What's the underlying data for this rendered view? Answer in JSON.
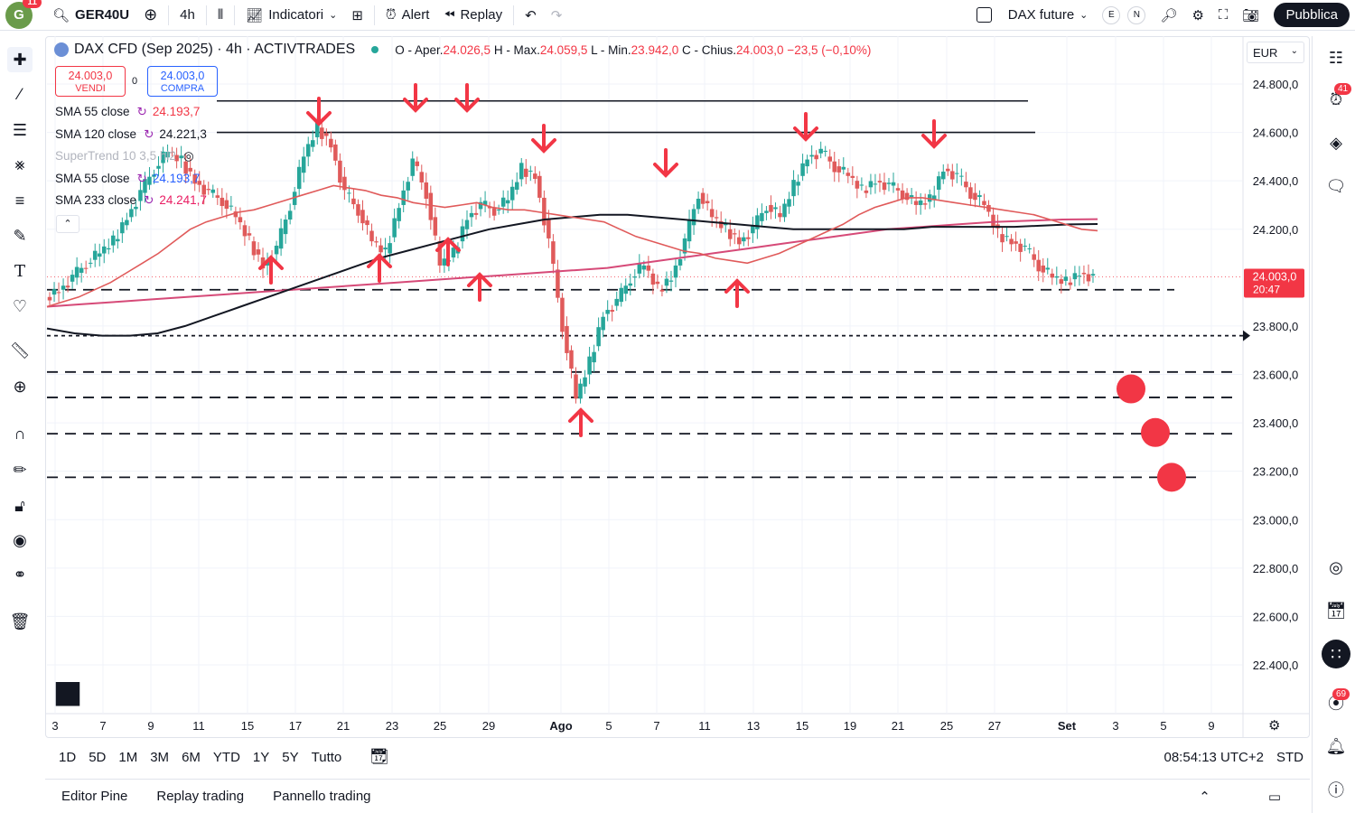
{
  "topbar": {
    "avatar_letter": "G",
    "avatar_badge": "11",
    "symbol": "GER40U",
    "interval": "4h",
    "indicators_label": "Indicatori",
    "alert_label": "Alert",
    "replay_label": "Replay",
    "layout_name": "DAX future",
    "circle_e": "E",
    "circle_n": "N",
    "publish_label": "Pubblica"
  },
  "legend": {
    "title": "DAX CFD (Sep 2025) · 4h · ACTIVTRADES",
    "o_label": "O - Aper.",
    "o_value": "24.026,5",
    "h_label": "H - Max.",
    "h_value": "24.059,5",
    "l_label": "L - Min.",
    "l_value": "23.942,0",
    "c_label": "C - Chius.",
    "c_value": "24.003,0",
    "change": "−23,5 (−0,10%)"
  },
  "trade": {
    "sell_price": "24.003,0",
    "sell_label": "VENDI",
    "spread": "0",
    "buy_price": "24.003,0",
    "buy_label": "COMPRA"
  },
  "indicators": [
    {
      "name": "SMA 55 close",
      "value": "24.193,7",
      "color": "#f23645"
    },
    {
      "name": "SMA 120 close",
      "value": "24.221,3",
      "color": "#131722"
    },
    {
      "name": "SuperTrend 10 3,5 hl2",
      "value": "",
      "color": "#b2b5be"
    },
    {
      "name": "SMA 55 close",
      "value": "24.193,7",
      "color": "#2962ff"
    },
    {
      "name": "SMA 233 close",
      "value": "24.241,7",
      "color": "#e91e63"
    }
  ],
  "currency": "EUR",
  "price_axis": {
    "ticks": [
      "24.800,0",
      "24.600,0",
      "24.400,0",
      "24.200,0",
      "23.800,0",
      "23.600,0",
      "23.400,0",
      "23.200,0",
      "23.000,0",
      "22.800,0",
      "22.600,0",
      "22.400,0"
    ],
    "current_price": "24.003,0",
    "countdown": "20:47"
  },
  "time_axis": [
    "3",
    "7",
    "9",
    "11",
    "15",
    "17",
    "21",
    "23",
    "25",
    "29",
    "Ago",
    "5",
    "7",
    "11",
    "13",
    "15",
    "19",
    "21",
    "25",
    "27",
    "Set",
    "3",
    "5",
    "9"
  ],
  "ranges": [
    "1D",
    "5D",
    "1M",
    "3M",
    "6M",
    "YTD",
    "1Y",
    "5Y",
    "Tutto"
  ],
  "clock": "08:54:13 UTC+2",
  "session": "STD",
  "panels": [
    "Editor Pine",
    "Replay trading",
    "Pannello trading"
  ],
  "right_badges": {
    "alerts": "41",
    "notifications": "69"
  },
  "colors": {
    "up": "#26a69a",
    "down": "#e05a5a",
    "arrow": "#f23645",
    "sma55": "#e05a5a",
    "sma120": "#131722",
    "sma233": "#d64a78"
  },
  "chart_data": {
    "type": "candlestick",
    "ylim": [
      22300,
      24900
    ],
    "close_series": [
      23950,
      24000,
      24060,
      24100,
      24150,
      24250,
      24350,
      24450,
      24520,
      24480,
      24400,
      24350,
      24320,
      24250,
      24150,
      24050,
      24120,
      24300,
      24500,
      24620,
      24550,
      24350,
      24280,
      24150,
      24100,
      24300,
      24480,
      24350,
      24050,
      24100,
      24250,
      24300,
      24280,
      24320,
      24450,
      24420,
      24150,
      23800,
      23500,
      23650,
      23850,
      23900,
      24000,
      24050,
      23950,
      24000,
      24150,
      24350,
      24250,
      24200,
      24150,
      24200,
      24300,
      24250,
      24380,
      24500,
      24520,
      24460,
      24420,
      24360,
      24400,
      24380,
      24350,
      24300,
      24320,
      24450,
      24420,
      24350,
      24300,
      24180,
      24150,
      24120,
      24050,
      24000,
      23980,
      24020,
      24003
    ],
    "sma55": [
      23880,
      23900,
      23920,
      23950,
      23980,
      24020,
      24060,
      24100,
      24150,
      24200,
      24230,
      24250,
      24270,
      24280,
      24300,
      24320,
      24340,
      24360,
      24380,
      24370,
      24360,
      24340,
      24330,
      24310,
      24300,
      24290,
      24300,
      24310,
      24290,
      24280,
      24280,
      24270,
      24260,
      24250,
      24240,
      24230,
      24200,
      24170,
      24150,
      24130,
      24110,
      24100,
      24080,
      24070,
      24060,
      24080,
      24100,
      24130,
      24160,
      24190,
      24220,
      24260,
      24290,
      24310,
      24330,
      24330,
      24320,
      24310,
      24300,
      24290,
      24280,
      24270,
      24260,
      24240,
      24220,
      24200,
      24193.7
    ],
    "sma120": [
      23790,
      23770,
      23760,
      23760,
      23770,
      23800,
      23840,
      23880,
      23920,
      23960,
      24000,
      24040,
      24080,
      24110,
      24140,
      24170,
      24200,
      24220,
      24240,
      24250,
      24260,
      24260,
      24250,
      24240,
      24230,
      24220,
      24210,
      24200,
      24200,
      24200,
      24200,
      24200,
      24210,
      24210,
      24210,
      24210,
      24215,
      24220,
      24221.3
    ],
    "sma233": [
      23880,
      23890,
      23900,
      23910,
      23920,
      23930,
      23940,
      23950,
      23960,
      23970,
      23980,
      23990,
      24000,
      24010,
      24020,
      24030,
      24040,
      24060,
      24080,
      24100,
      24120,
      24140,
      24160,
      24180,
      24200,
      24210,
      24220,
      24230,
      24235,
      24240,
      24241.7
    ],
    "horizontal_levels": [
      {
        "price": 24730,
        "style": "solid"
      },
      {
        "price": 24600,
        "style": "solid"
      },
      {
        "price": 23950,
        "style": "dashed"
      },
      {
        "price": 23760,
        "style": "dotted"
      },
      {
        "price": 23610,
        "style": "dashed"
      },
      {
        "price": 23505,
        "style": "dashed"
      },
      {
        "price": 23355,
        "style": "dashed"
      },
      {
        "price": 23175,
        "style": "dashed"
      }
    ],
    "red_dots": [
      {
        "price": 23555
      },
      {
        "price": 23360
      },
      {
        "price": 23175
      }
    ],
    "current_price_value": 24003
  }
}
